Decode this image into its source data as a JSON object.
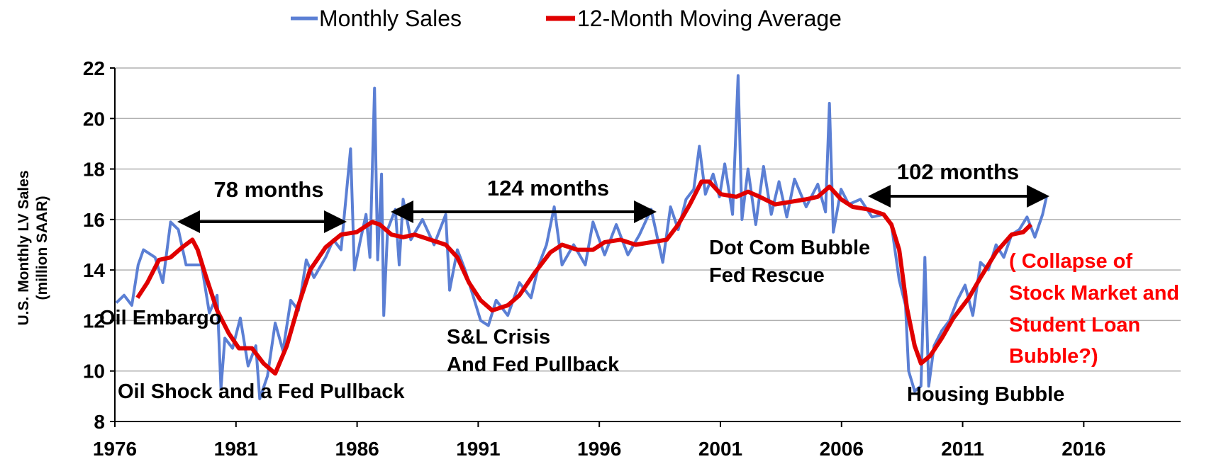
{
  "chart_data": {
    "type": "line",
    "y_label": [
      "U.S. Monthly LV Sales",
      "(million SAAR)"
    ],
    "xlim": [
      1976,
      2020
    ],
    "xticks": [
      1976,
      1981,
      1986,
      1991,
      1996,
      2001,
      2006,
      2011,
      2016
    ],
    "ylim": [
      8,
      22
    ],
    "yticks": [
      8,
      10,
      12,
      14,
      16,
      18,
      20,
      22
    ],
    "grid": true,
    "legend": "top",
    "series": [
      {
        "name": "Monthly Sales",
        "color": "#5b7fd4",
        "x": [
          1976.06,
          1976.38,
          1976.7,
          1976.96,
          1977.18,
          1977.66,
          1977.98,
          1978.3,
          1978.62,
          1978.94,
          1979.58,
          1979.9,
          1980.22,
          1980.38,
          1980.54,
          1980.86,
          1981.18,
          1981.5,
          1981.82,
          1981.98,
          1982.3,
          1982.62,
          1982.94,
          1983.26,
          1983.58,
          1983.9,
          1984.22,
          1984.7,
          1985.02,
          1985.34,
          1985.73,
          1985.89,
          1986.14,
          1986.37,
          1986.53,
          1986.72,
          1986.85,
          1987.01,
          1987.1,
          1987.26,
          1987.58,
          1987.74,
          1987.9,
          1988.22,
          1988.7,
          1989.18,
          1989.66,
          1989.82,
          1990.14,
          1990.46,
          1990.78,
          1991.1,
          1991.42,
          1991.74,
          1992.22,
          1992.7,
          1993.18,
          1993.5,
          1993.82,
          1994.14,
          1994.46,
          1994.94,
          1995.42,
          1995.74,
          1996.22,
          1996.7,
          1997.18,
          1997.66,
          1998.14,
          1998.62,
          1998.94,
          1999.26,
          1999.58,
          1999.9,
          2000.13,
          2000.38,
          2000.7,
          2000.96,
          2001.18,
          2001.5,
          2001.73,
          2001.89,
          2002.14,
          2002.46,
          2002.78,
          2003.1,
          2003.42,
          2003.74,
          2004.06,
          2004.54,
          2005.02,
          2005.34,
          2005.5,
          2005.66,
          2005.98,
          2006.3,
          2006.78,
          2007.26,
          2007.74,
          2008.06,
          2008.38,
          2008.64,
          2008.77,
          2009.02,
          2009.28,
          2009.44,
          2009.6,
          2009.82,
          2010.14,
          2010.46,
          2010.78,
          2011.1,
          2011.42,
          2011.74,
          2012.06,
          2012.38,
          2012.7,
          2013.02,
          2013.34,
          2013.66,
          2013.98,
          2014.3,
          2014.46
        ],
        "values": [
          12.7,
          13.0,
          12.6,
          14.2,
          14.8,
          14.5,
          13.5,
          15.9,
          15.6,
          14.2,
          14.2,
          12.3,
          13.0,
          9.3,
          11.3,
          10.9,
          12.1,
          10.2,
          11.0,
          8.9,
          9.8,
          11.9,
          10.8,
          12.8,
          12.4,
          14.4,
          13.7,
          14.5,
          15.2,
          14.8,
          18.8,
          14.0,
          15.2,
          16.2,
          14.5,
          21.2,
          14.4,
          17.8,
          12.2,
          15.6,
          16.4,
          14.2,
          16.8,
          15.2,
          16.0,
          15.0,
          16.2,
          13.2,
          14.8,
          14.0,
          13.0,
          12.0,
          11.8,
          12.8,
          12.2,
          13.5,
          12.9,
          14.2,
          15.0,
          16.5,
          14.2,
          15.0,
          14.2,
          15.9,
          14.6,
          15.8,
          14.6,
          15.4,
          16.4,
          14.3,
          16.5,
          15.6,
          16.8,
          17.2,
          18.9,
          17.0,
          17.8,
          16.9,
          18.2,
          16.2,
          21.7,
          16.0,
          18.0,
          15.8,
          18.1,
          16.2,
          17.5,
          16.1,
          17.6,
          16.5,
          17.4,
          16.3,
          20.6,
          15.5,
          17.2,
          16.6,
          16.8,
          16.1,
          16.2,
          15.8,
          13.6,
          12.6,
          10.0,
          9.2,
          9.4,
          14.5,
          9.4,
          11.0,
          11.6,
          12.0,
          12.8,
          13.4,
          12.2,
          14.3,
          14.0,
          15.0,
          14.5,
          15.4,
          15.6,
          16.1,
          15.3,
          16.2,
          16.9
        ]
      },
      {
        "name": "12-Month Moving Average",
        "color": "#e00000",
        "x": [
          1976.93,
          1977.34,
          1977.82,
          1978.3,
          1978.78,
          1979.2,
          1979.42,
          1979.74,
          1980.22,
          1980.7,
          1981.12,
          1981.66,
          1982.14,
          1982.62,
          1983.1,
          1983.58,
          1984.06,
          1984.7,
          1985.34,
          1985.98,
          1986.62,
          1986.94,
          1987.42,
          1987.9,
          1988.38,
          1989.02,
          1989.66,
          1990.14,
          1990.62,
          1991.1,
          1991.58,
          1992.22,
          1992.7,
          1993.34,
          1993.98,
          1994.46,
          1995.1,
          1995.74,
          1996.22,
          1996.86,
          1997.5,
          1998.14,
          1998.78,
          1999.26,
          1999.74,
          2000.22,
          2000.54,
          2001.02,
          2001.66,
          2002.14,
          2002.62,
          2003.26,
          2003.9,
          2004.54,
          2005.02,
          2005.5,
          2005.98,
          2006.46,
          2007.1,
          2007.74,
          2008.06,
          2008.38,
          2008.7,
          2009.02,
          2009.28,
          2009.66,
          2010.14,
          2010.62,
          2011.26,
          2011.74,
          2012.38,
          2013.02,
          2013.5,
          2013.82
        ],
        "values": [
          12.9,
          13.5,
          14.4,
          14.5,
          14.9,
          15.2,
          14.8,
          13.8,
          12.4,
          11.5,
          10.9,
          10.9,
          10.3,
          9.9,
          11.0,
          12.6,
          14.0,
          14.9,
          15.4,
          15.5,
          15.9,
          15.8,
          15.4,
          15.3,
          15.4,
          15.2,
          15.0,
          14.5,
          13.5,
          12.8,
          12.4,
          12.6,
          13.0,
          13.9,
          14.7,
          15.0,
          14.8,
          14.8,
          15.1,
          15.2,
          15.0,
          15.1,
          15.2,
          15.8,
          16.6,
          17.5,
          17.5,
          17.0,
          16.9,
          17.1,
          16.9,
          16.6,
          16.7,
          16.8,
          16.9,
          17.3,
          16.8,
          16.5,
          16.4,
          16.2,
          15.8,
          14.8,
          12.5,
          11.0,
          10.3,
          10.6,
          11.3,
          12.1,
          12.9,
          13.7,
          14.7,
          15.4,
          15.5,
          15.8
        ]
      }
    ],
    "annotations": [
      "78 months",
      "124 months",
      "102 months",
      "Oil Embargo",
      "Oil Shock and a Fed Pullback",
      "S&L Crisis",
      "And Fed Pullback",
      "Dot Com Bubble",
      "Fed Rescue",
      "Housing Bubble",
      "( Collapse of",
      "Stock Market and",
      "Student Loan",
      "Bubble?)"
    ]
  }
}
